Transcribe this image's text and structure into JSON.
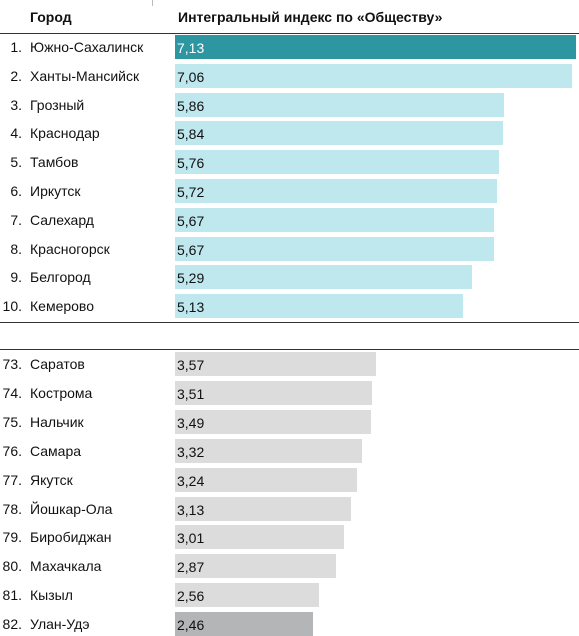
{
  "header": {
    "city_label": "Город",
    "index_label": "Интегральный индекс по «Обществу»"
  },
  "colors": {
    "top_highlight": "#2d96a0",
    "top": "#bfe7ee",
    "bottom": "#dcdcdd",
    "bottom_highlight": "#b4b5b7"
  },
  "chart_data": {
    "type": "bar",
    "orientation": "horizontal",
    "xlim": [
      0,
      7.15
    ],
    "groups": [
      {
        "name": "top",
        "rows": [
          {
            "rank": "1.",
            "city": "Южно-Сахалинск",
            "value": 7.13,
            "label": "7,13",
            "color": "#2d96a0",
            "text": "light"
          },
          {
            "rank": "2.",
            "city": "Ханты-Мансийск",
            "value": 7.06,
            "label": "7,06",
            "color": "#bfe7ee"
          },
          {
            "rank": "3.",
            "city": "Грозный",
            "value": 5.86,
            "label": "5,86",
            "color": "#bfe7ee"
          },
          {
            "rank": "4.",
            "city": "Краснодар",
            "value": 5.84,
            "label": "5,84",
            "color": "#bfe7ee"
          },
          {
            "rank": "5.",
            "city": "Тамбов",
            "value": 5.76,
            "label": "5,76",
            "color": "#bfe7ee"
          },
          {
            "rank": "6.",
            "city": "Иркутск",
            "value": 5.72,
            "label": "5,72",
            "color": "#bfe7ee"
          },
          {
            "rank": "7.",
            "city": "Салехард",
            "value": 5.67,
            "label": "5,67",
            "color": "#bfe7ee"
          },
          {
            "rank": "8.",
            "city": "Красногорск",
            "value": 5.67,
            "label": "5,67",
            "color": "#bfe7ee"
          },
          {
            "rank": "9.",
            "city": "Белгород",
            "value": 5.29,
            "label": "5,29",
            "color": "#bfe7ee"
          },
          {
            "rank": "10.",
            "city": "Кемерово",
            "value": 5.13,
            "label": "5,13",
            "color": "#bfe7ee"
          }
        ]
      },
      {
        "name": "bottom",
        "rows": [
          {
            "rank": "73.",
            "city": "Саратов",
            "value": 3.57,
            "label": "3,57",
            "color": "#dcdcdd"
          },
          {
            "rank": "74.",
            "city": "Кострома",
            "value": 3.51,
            "label": "3,51",
            "color": "#dcdcdd"
          },
          {
            "rank": "75.",
            "city": "Нальчик",
            "value": 3.49,
            "label": "3,49",
            "color": "#dcdcdd"
          },
          {
            "rank": "76.",
            "city": "Самара",
            "value": 3.32,
            "label": "3,32",
            "color": "#dcdcdd"
          },
          {
            "rank": "77.",
            "city": "Якутск",
            "value": 3.24,
            "label": "3,24",
            "color": "#dcdcdd"
          },
          {
            "rank": "78.",
            "city": "Йошкар-Ола",
            "value": 3.13,
            "label": "3,13",
            "color": "#dcdcdd"
          },
          {
            "rank": "79.",
            "city": "Биробиджан",
            "value": 3.01,
            "label": "3,01",
            "color": "#dcdcdd"
          },
          {
            "rank": "80.",
            "city": "Махачкала",
            "value": 2.87,
            "label": "2,87",
            "color": "#dcdcdd"
          },
          {
            "rank": "81.",
            "city": "Кызыл",
            "value": 2.56,
            "label": "2,56",
            "color": "#dcdcdd"
          },
          {
            "rank": "82.",
            "city": "Улан-Удэ",
            "value": 2.46,
            "label": "2,46",
            "color": "#b4b5b7"
          }
        ]
      }
    ]
  }
}
